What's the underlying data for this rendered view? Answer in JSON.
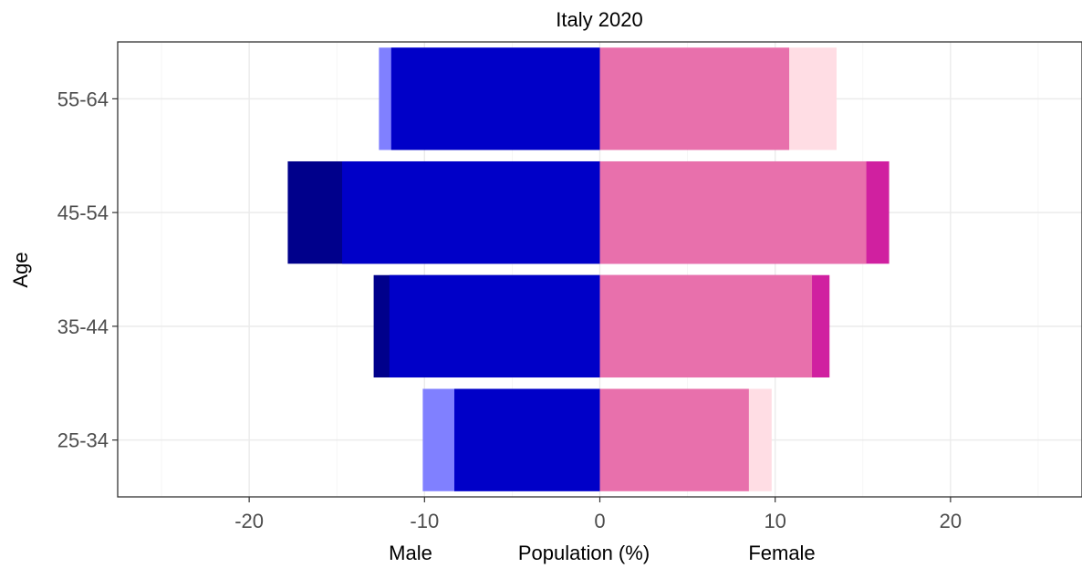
{
  "chart_data": {
    "type": "bar",
    "orientation": "horizontal",
    "title": "Italy 2020",
    "xlabel": "Population (%)",
    "xlabel_left": "Male",
    "xlabel_right": "Female",
    "ylabel": "Age",
    "xlim": [
      -27.5,
      27.5
    ],
    "x_ticks": [
      -20,
      -10,
      0,
      10,
      20
    ],
    "categories": [
      "25-34",
      "35-44",
      "45-54",
      "55-64"
    ],
    "grid": true,
    "legend": "none",
    "series": [
      {
        "name": "Male",
        "side": "left",
        "color": "#0000c8",
        "values": [
          -8.3,
          -12.0,
          -14.7,
          -11.9
        ],
        "extension_values": [
          -10.1,
          -12.9,
          -17.8,
          -12.6
        ],
        "extension_colors": [
          "#8080ff",
          "#00008b",
          "#00008b",
          "#8080ff"
        ]
      },
      {
        "name": "Female",
        "side": "right",
        "color": "#e870ac",
        "values": [
          8.5,
          12.1,
          15.2,
          10.8
        ],
        "extension_values": [
          9.8,
          13.1,
          16.5,
          13.5
        ],
        "extension_colors": [
          "#ffdde4",
          "#d020a0",
          "#d020a0",
          "#ffdde4"
        ]
      }
    ]
  }
}
